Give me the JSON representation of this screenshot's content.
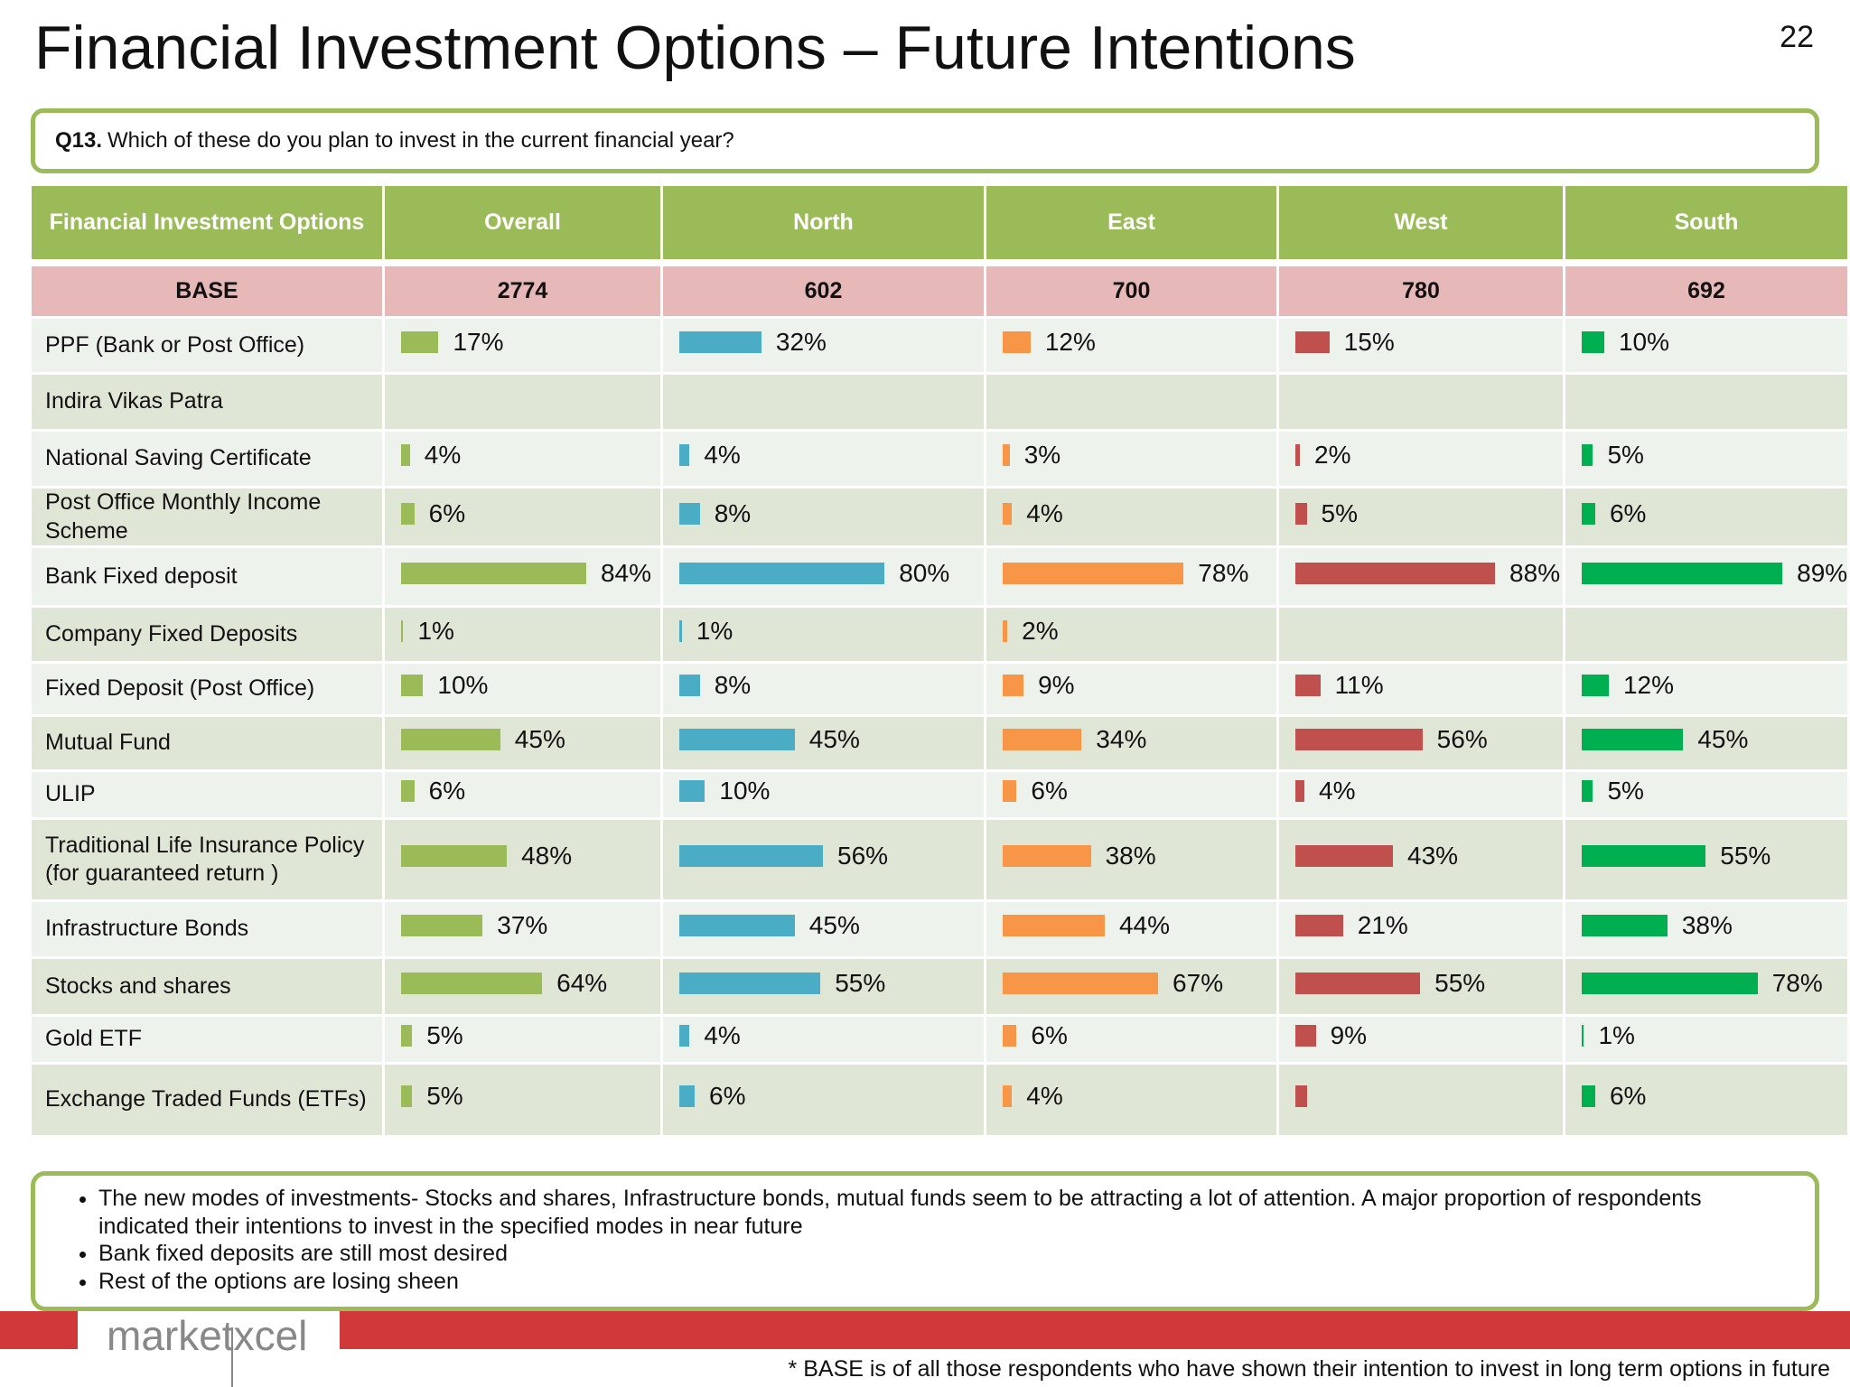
{
  "header": {
    "title": "Financial Investment Options – Future Intentions",
    "page": "22"
  },
  "question": {
    "label": "Q13.",
    "text": "Which of these do you plan to invest in the current financial year?"
  },
  "table": {
    "columns": [
      "Financial Investment Options",
      "Overall",
      "North",
      "East",
      "West",
      "South"
    ],
    "colors": [
      "#9bbb59",
      "#4bacc6",
      "#f79646",
      "#c0504d",
      "#00b050"
    ],
    "base": {
      "label": "BASE",
      "values": [
        2774,
        602,
        700,
        780,
        692
      ]
    },
    "rows": [
      {
        "name": "PPF (Bank or Post Office)",
        "values": [
          17,
          32,
          12,
          15,
          10
        ],
        "value_labels": [
          "17%",
          "32%",
          "12%",
          "15%",
          "10%"
        ]
      },
      {
        "name": "Indira Vikas Patra",
        "values": [
          null,
          null,
          null,
          null,
          null
        ],
        "value_labels": [
          null,
          null,
          null,
          null,
          null
        ]
      },
      {
        "name": "National Saving Certificate",
        "values": [
          4,
          4,
          3,
          2,
          5
        ],
        "value_labels": [
          "4%",
          "4%",
          "3%",
          "2%",
          "5%"
        ]
      },
      {
        "name": "Post Office Monthly Income Scheme",
        "values": [
          6,
          8,
          4,
          5,
          6
        ],
        "value_labels": [
          "6%",
          "8%",
          "4%",
          "5%",
          "6%"
        ]
      },
      {
        "name": "Bank Fixed deposit",
        "values": [
          84,
          80,
          78,
          88,
          89
        ],
        "value_labels": [
          "84%",
          "80%",
          "78%",
          "88%",
          "89%"
        ]
      },
      {
        "name": "Company Fixed Deposits",
        "values": [
          1,
          1,
          2,
          null,
          null
        ],
        "value_labels": [
          "1%",
          "1%",
          "2%",
          null,
          null
        ]
      },
      {
        "name": "Fixed Deposit (Post Office)",
        "values": [
          10,
          8,
          9,
          11,
          12
        ],
        "value_labels": [
          "10%",
          "8%",
          "9%",
          "11%",
          "12%"
        ]
      },
      {
        "name": "Mutual Fund",
        "values": [
          45,
          45,
          34,
          56,
          45
        ],
        "value_labels": [
          "45%",
          "45%",
          "34%",
          "56%",
          "45%"
        ]
      },
      {
        "name": "ULIP",
        "values": [
          6,
          10,
          6,
          4,
          5
        ],
        "value_labels": [
          "6%",
          "10%",
          "6%",
          "4%",
          "5%"
        ]
      },
      {
        "name": "Traditional Life Insurance Policy (for guaranteed return )",
        "values": [
          48,
          56,
          38,
          43,
          55
        ],
        "value_labels": [
          "48%",
          "56%",
          "38%",
          "43%",
          "55%"
        ]
      },
      {
        "name": "Infrastructure Bonds",
        "values": [
          37,
          45,
          44,
          21,
          38
        ],
        "value_labels": [
          "37%",
          "45%",
          "44%",
          "21%",
          "38%"
        ]
      },
      {
        "name": "Stocks and shares",
        "values": [
          64,
          55,
          67,
          55,
          78
        ],
        "value_labels": [
          "64%",
          "55%",
          "67%",
          "55%",
          "78%"
        ]
      },
      {
        "name": "Gold ETF",
        "values": [
          5,
          4,
          6,
          9,
          1
        ],
        "value_labels": [
          "5%",
          "4%",
          "6%",
          "9%",
          "1%"
        ]
      },
      {
        "name": "Exchange Traded Funds (ETFs)",
        "values": [
          5,
          6,
          4,
          5,
          6
        ],
        "value_labels": [
          "5%",
          "6%",
          "4%",
          null,
          "6%"
        ]
      }
    ]
  },
  "notes": [
    "The new modes of investments- Stocks and shares, Infrastructure bonds, mutual funds seem to be attracting a lot of attention. A major proportion of respondents indicated their intentions to invest in the specified modes in near future",
    "Bank fixed deposits are still most desired",
    "Rest of the options are losing sheen"
  ],
  "logo": "marketxcel",
  "footnote": "* BASE is of all those respondents who have shown their intention to invest in long term options in future"
}
